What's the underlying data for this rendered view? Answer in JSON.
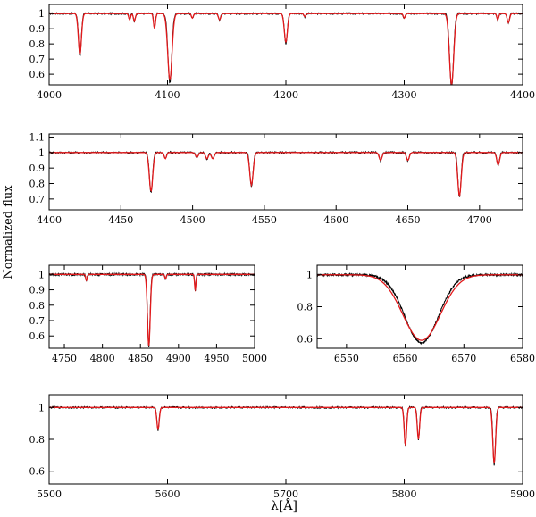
{
  "figure": {
    "ylabel": "Normalized flux",
    "xlabel": "λ[Å]"
  },
  "colors": {
    "observed": "#000000",
    "model": "#e31a1c",
    "frame": "#000000"
  },
  "chart_data": [
    {
      "type": "line",
      "xlim": [
        4000,
        4400
      ],
      "ylim": [
        0.53,
        1.06
      ],
      "xticks": [
        "4000",
        "4100",
        "4200",
        "4300",
        "4400"
      ],
      "yticks": [
        "0.6",
        "0.7",
        "0.8",
        "0.9",
        "1"
      ],
      "continuum": 1.0,
      "lines": [
        {
          "x": 4026,
          "depth": 0.27,
          "width": 1.3
        },
        {
          "x": 4068,
          "depth": 0.04,
          "width": 0.8
        },
        {
          "x": 4072,
          "depth": 0.05,
          "width": 0.8
        },
        {
          "x": 4089,
          "depth": 0.1,
          "width": 0.8
        },
        {
          "x": 4102,
          "depth": 0.44,
          "width": 1.8
        },
        {
          "x": 4121,
          "depth": 0.03,
          "width": 0.8
        },
        {
          "x": 4144,
          "depth": 0.04,
          "width": 1.0
        },
        {
          "x": 4200,
          "depth": 0.19,
          "width": 1.3
        },
        {
          "x": 4216,
          "depth": 0.02,
          "width": 0.8
        },
        {
          "x": 4300,
          "depth": 0.03,
          "width": 0.8
        },
        {
          "x": 4340,
          "depth": 0.47,
          "width": 1.8
        },
        {
          "x": 4379,
          "depth": 0.04,
          "width": 0.8
        },
        {
          "x": 4388,
          "depth": 0.06,
          "width": 1.0
        }
      ]
    },
    {
      "type": "line",
      "xlim": [
        4400,
        4730
      ],
      "ylim": [
        0.63,
        1.12
      ],
      "xticks": [
        "4400",
        "4450",
        "4500",
        "4550",
        "4600",
        "4650",
        "4700"
      ],
      "yticks": [
        "0.7",
        "0.8",
        "0.9",
        "1",
        "1.1"
      ],
      "continuum": 1.0,
      "lines": [
        {
          "x": 4471,
          "depth": 0.25,
          "width": 1.2
        },
        {
          "x": 4481,
          "depth": 0.04,
          "width": 0.8
        },
        {
          "x": 4503,
          "depth": 0.03,
          "width": 1.0
        },
        {
          "x": 4510,
          "depth": 0.04,
          "width": 1.0
        },
        {
          "x": 4514,
          "depth": 0.04,
          "width": 1.0
        },
        {
          "x": 4541,
          "depth": 0.21,
          "width": 1.2
        },
        {
          "x": 4631,
          "depth": 0.05,
          "width": 1.0
        },
        {
          "x": 4650,
          "depth": 0.05,
          "width": 1.0
        },
        {
          "x": 4686,
          "depth": 0.28,
          "width": 1.2
        },
        {
          "x": 4713,
          "depth": 0.08,
          "width": 1.0
        }
      ]
    },
    {
      "type": "line",
      "xlim": [
        4730,
        5000
      ],
      "ylim": [
        0.52,
        1.06
      ],
      "xticks": [
        "4750",
        "4800",
        "4850",
        "4900",
        "4950",
        "5000"
      ],
      "yticks": [
        "0.6",
        "0.7",
        "0.8",
        "0.9",
        "1"
      ],
      "continuum": 1.0,
      "lines": [
        {
          "x": 4779,
          "depth": 0.04,
          "width": 1.0
        },
        {
          "x": 4861,
          "depth": 0.46,
          "width": 1.8
        },
        {
          "x": 4883,
          "depth": 0.03,
          "width": 1.0
        },
        {
          "x": 4922,
          "depth": 0.1,
          "width": 0.9
        }
      ]
    },
    {
      "type": "line",
      "xlim": [
        6545,
        6580
      ],
      "ylim": [
        0.54,
        1.06
      ],
      "xticks": [
        "6550",
        "6560",
        "6570",
        "6580"
      ],
      "yticks": [
        "0.6",
        "0.8",
        "1"
      ],
      "continuum": 1.0,
      "lines": [
        {
          "x": 6562.8,
          "depth": 0.41,
          "width": 3.2
        }
      ]
    },
    {
      "type": "line",
      "xlim": [
        5500,
        5900
      ],
      "ylim": [
        0.52,
        1.08
      ],
      "xticks": [
        "5500",
        "5600",
        "5700",
        "5800",
        "5900"
      ],
      "yticks": [
        "0.6",
        "0.8",
        "1"
      ],
      "continuum": 1.0,
      "lines": [
        {
          "x": 5592,
          "depth": 0.14,
          "width": 1.0
        },
        {
          "x": 5801,
          "depth": 0.24,
          "width": 1.0
        },
        {
          "x": 5812,
          "depth": 0.2,
          "width": 1.0
        },
        {
          "x": 5876,
          "depth": 0.35,
          "width": 1.2
        }
      ]
    }
  ]
}
